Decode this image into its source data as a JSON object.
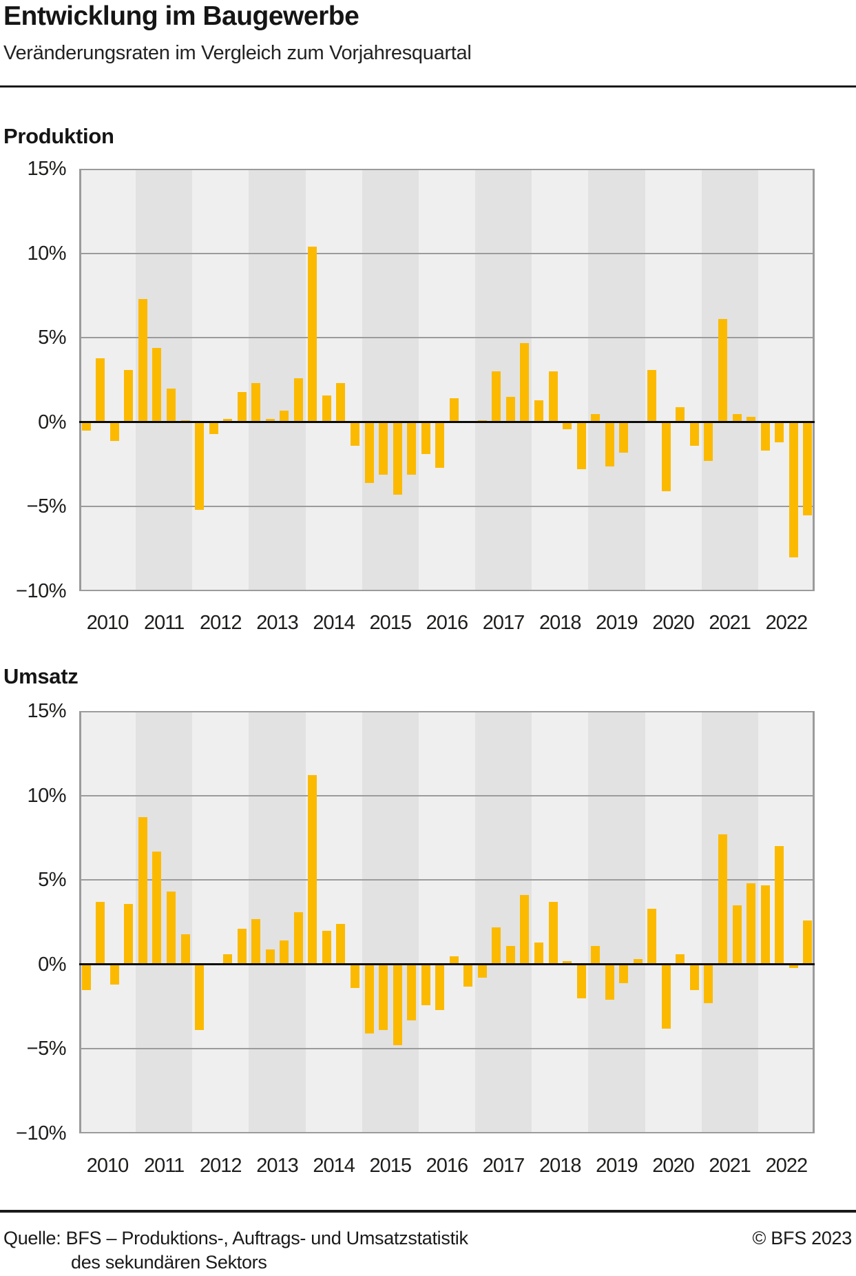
{
  "page": {
    "title": "Entwicklung im Baugewerbe",
    "subtitle": "Veränderungsraten im Vergleich zum Vorjahresquartal",
    "footer": {
      "source_line1": "Quelle: BFS – Produktions-, Auftrags- und Umsatzstatistik",
      "source_line2": "des sekundären Sektors",
      "copyright": "© BFS 2023"
    }
  },
  "colors": {
    "bar": "#FBBA00",
    "band_light": "#EFEFEF",
    "band_dark": "#E2E2E2",
    "gridline": "#9B9B9B",
    "zero_line": "#0A0A0A",
    "text": "#1A1A1A"
  },
  "chart_data": [
    {
      "type": "bar",
      "title": "Produktion",
      "unit": "percent_change_vs_prior_year_quarter",
      "categories": [
        "2010",
        "2011",
        "2012",
        "2013",
        "2014",
        "2015",
        "2016",
        "2017",
        "2018",
        "2019",
        "2020",
        "2021",
        "2022"
      ],
      "quarters_per_year": 4,
      "series": [
        {
          "name": "Produktion",
          "values": [
            -0.5,
            3.8,
            -1.1,
            3.1,
            7.3,
            4.4,
            2.0,
            0.1,
            -5.2,
            -0.7,
            0.2,
            1.8,
            2.3,
            0.2,
            0.7,
            2.6,
            10.4,
            1.6,
            2.3,
            -1.4,
            -3.6,
            -3.1,
            -4.3,
            -3.1,
            -1.9,
            -2.7,
            1.4,
            0.0,
            0.1,
            3.0,
            1.5,
            4.7,
            1.3,
            3.0,
            -0.4,
            -2.8,
            0.5,
            -2.6,
            -1.8,
            0.0,
            3.1,
            -4.1,
            0.9,
            -1.4,
            -2.3,
            6.1,
            0.5,
            0.3,
            -1.7,
            -1.2,
            -8.0,
            -5.5
          ]
        }
      ],
      "ylim": [
        -10,
        15
      ],
      "yticks": [
        15,
        10,
        5,
        0,
        -5,
        -10
      ],
      "ytick_labels": [
        "15%",
        "10%",
        "5%",
        "0%",
        "−5%",
        "−10%"
      ],
      "grid": true,
      "legend": false
    },
    {
      "type": "bar",
      "title": "Umsatz",
      "unit": "percent_change_vs_prior_year_quarter",
      "categories": [
        "2010",
        "2011",
        "2012",
        "2013",
        "2014",
        "2015",
        "2016",
        "2017",
        "2018",
        "2019",
        "2020",
        "2021",
        "2022"
      ],
      "quarters_per_year": 4,
      "series": [
        {
          "name": "Umsatz",
          "values": [
            -1.5,
            3.7,
            -1.2,
            3.6,
            8.7,
            6.7,
            4.3,
            1.8,
            -3.9,
            0.0,
            0.6,
            2.1,
            2.7,
            0.9,
            1.4,
            3.1,
            11.2,
            2.0,
            2.4,
            -1.4,
            -4.1,
            -3.9,
            -4.8,
            -3.3,
            -2.4,
            -2.7,
            0.5,
            -1.3,
            -0.8,
            2.2,
            1.1,
            4.1,
            1.3,
            3.7,
            0.2,
            -2.0,
            1.1,
            -2.1,
            -1.1,
            0.3,
            3.3,
            -3.8,
            0.6,
            -1.5,
            -2.3,
            7.7,
            3.5,
            4.8,
            4.7,
            7.0,
            -0.2,
            2.6
          ]
        }
      ],
      "ylim": [
        -10,
        15
      ],
      "yticks": [
        15,
        10,
        5,
        0,
        -5,
        -10
      ],
      "ytick_labels": [
        "15%",
        "10%",
        "5%",
        "0%",
        "−5%",
        "−10%"
      ],
      "grid": true,
      "legend": false
    }
  ]
}
